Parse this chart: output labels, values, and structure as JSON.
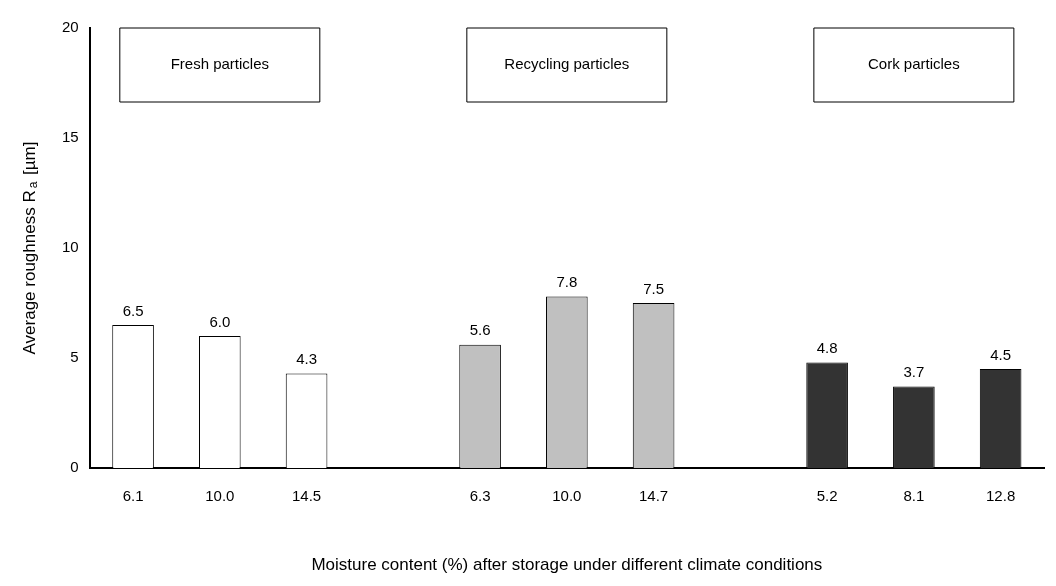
{
  "chart_data": {
    "type": "bar",
    "xlabel": "Moisture content (%) after storage under different climate conditions",
    "ylabel": "Average roughness R$_{a}$ [µm]",
    "categories": [
      "6.1",
      "10.0",
      "14.5",
      null,
      "6.3",
      "10.0",
      "14.7",
      null,
      "5.2",
      "8.1",
      "12.8"
    ],
    "values": [
      6.5,
      6.0,
      4.3,
      null,
      5.6,
      7.8,
      7.5,
      null,
      4.8,
      3.7,
      4.5
    ],
    "colors": [
      "#ffffff",
      "#ffffff",
      "#ffffff",
      "#ffffff",
      "#c0c0c0",
      "#c0c0c0",
      "#c0c0c0",
      "#c0c0c0",
      "#333333",
      "#333333",
      "#333333"
    ],
    "value_labels": [
      "6.5",
      "6.0",
      "4.3",
      null,
      "5.6",
      "7.8",
      "7.5",
      null,
      "4.8",
      "3.7",
      "4.5"
    ],
    "ylim": [
      0,
      20
    ],
    "yticks": [
      0,
      5,
      10,
      15,
      20
    ],
    "grid": false,
    "legend": false,
    "annotations": [
      "Fresh particles",
      "Recycling particles",
      "Cork particles"
    ]
  }
}
